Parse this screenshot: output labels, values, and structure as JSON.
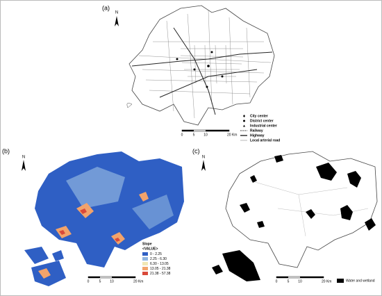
{
  "panels": [
    {
      "label": "(a)",
      "north": "N",
      "scale": [
        "0",
        "5",
        "10",
        "20 Km"
      ],
      "legend": [
        {
          "label": "City center"
        },
        {
          "label": "District center"
        },
        {
          "label": "Industrial center"
        },
        {
          "label": "Railway"
        },
        {
          "label": "Highway"
        },
        {
          "label": "Local arterial road"
        }
      ]
    },
    {
      "label": "(b)",
      "north": "N",
      "scale": [
        "0",
        "5",
        "10",
        "20 Km"
      ],
      "legend_title": "Slope",
      "legend_subtitle": "<VALUE>",
      "legend": [
        {
          "label": "0 - 2.25",
          "color": "#2f5fc4"
        },
        {
          "label": "2.25 - 6.30",
          "color": "#8fb4e0"
        },
        {
          "label": "6.30 - 13.05",
          "color": "#f1e7b4"
        },
        {
          "label": "13.05 - 21.38",
          "color": "#f2a36b"
        },
        {
          "label": "21.38 - 57.38",
          "color": "#d9493a"
        }
      ]
    },
    {
      "label": "(c)",
      "north": "N",
      "scale": [
        "0",
        "5",
        "10",
        "20 Km"
      ],
      "legend": [
        {
          "label": "Water and wetland",
          "color": "#000000"
        }
      ]
    }
  ]
}
